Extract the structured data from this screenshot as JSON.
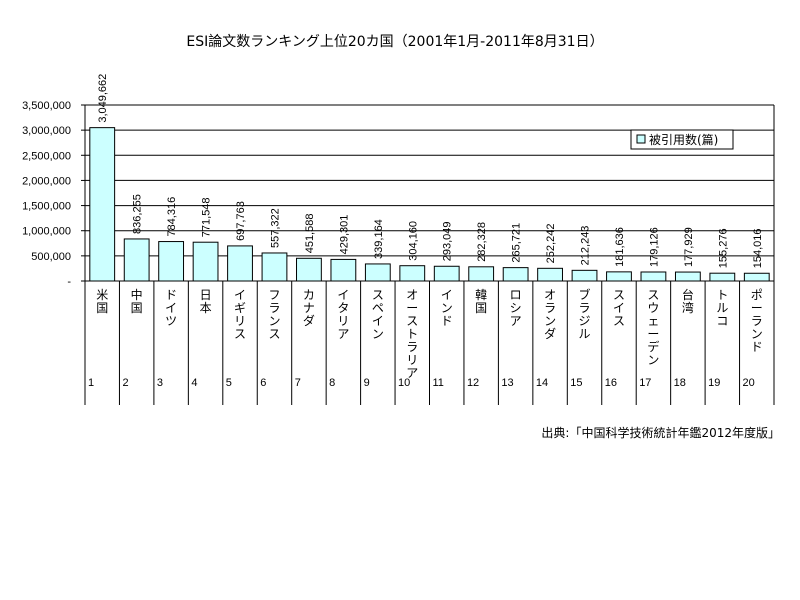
{
  "chart_data": {
    "type": "bar",
    "title": "ESI論文数ランキング上位20カ国（2001年1月-2011年8月31日）",
    "categories": [
      "米国",
      "中国",
      "ドイツ",
      "日本",
      "イギリス",
      "フランス",
      "カナダ",
      "イタリア",
      "スペイン",
      "オーストラリア",
      "インド",
      "韓国",
      "ロシア",
      "オランダ",
      "ブラジル",
      "スイス",
      "スウェーデン",
      "台湾",
      "トルコ",
      "ポーランド"
    ],
    "ranks": [
      "1",
      "2",
      "3",
      "4",
      "5",
      "6",
      "7",
      "8",
      "9",
      "10",
      "11",
      "12",
      "13",
      "14",
      "15",
      "16",
      "17",
      "18",
      "19",
      "20"
    ],
    "series": [
      {
        "name": "被引用数(篇)",
        "values": [
          3049662,
          836255,
          784316,
          771548,
          697763,
          557322,
          451588,
          429301,
          339164,
          304160,
          293049,
          282328,
          265721,
          252242,
          212243,
          181636,
          179126,
          177929,
          155276,
          154016
        ],
        "labels": [
          "3,049,662",
          "836,255",
          "784,316",
          "771,548",
          "697,763",
          "557,322",
          "451,588",
          "429,301",
          "339,164",
          "304,160",
          "293,049",
          "282,328",
          "265,721",
          "252,242",
          "212,243",
          "181,636",
          "179,126",
          "177,929",
          "155,276",
          "154,016"
        ]
      }
    ],
    "ylim": [
      0,
      3500000
    ],
    "yticks": [
      0,
      500000,
      1000000,
      1500000,
      2000000,
      2500000,
      3000000,
      3500000
    ],
    "ytick_labels": [
      "-",
      "500,000",
      "1,000,000",
      "1,500,000",
      "2,000,000",
      "2,500,000",
      "3,000,000",
      "3,500,000"
    ],
    "grid": true,
    "legend_placement": "top-right",
    "bar_color": "#ccffff",
    "source": "出典:「中国科学技術統計年鑑2012年度版」"
  }
}
